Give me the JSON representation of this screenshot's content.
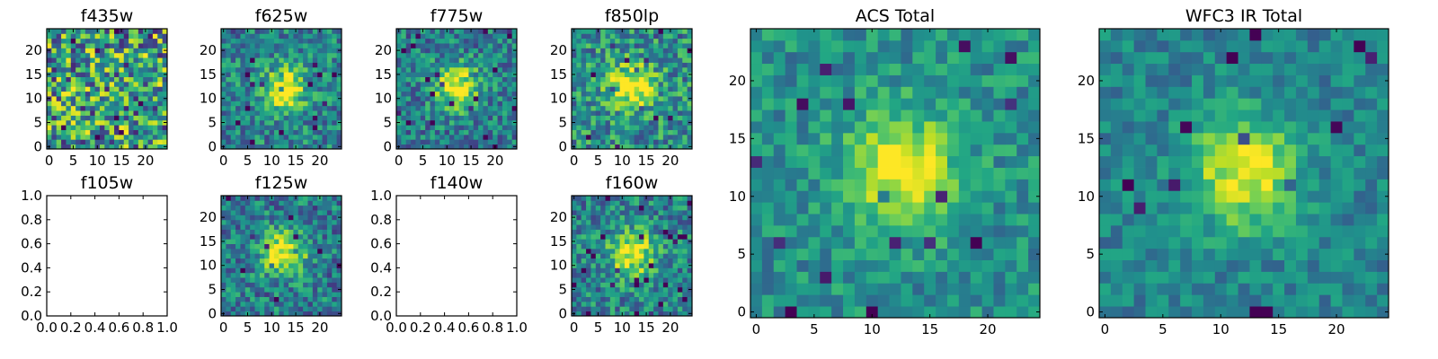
{
  "figure": {
    "colormap": "viridis",
    "grid": false
  },
  "chart_data": [
    {
      "type": "heatmap",
      "title": "f435w",
      "xticks": [
        "0",
        "5",
        "10",
        "15",
        "20"
      ],
      "yticks": [
        "0",
        "5",
        "10",
        "15",
        "20"
      ],
      "xlim": [
        -0.5,
        24.5
      ],
      "ylim": [
        -0.5,
        24.5
      ],
      "grid_size": 25,
      "blob": {
        "x": 12,
        "y": 12,
        "peak": 0.0
      },
      "noise": 0.9,
      "base": 0.55,
      "seed": 11
    },
    {
      "type": "heatmap",
      "title": "f625w",
      "xticks": [
        "0",
        "5",
        "10",
        "15",
        "20"
      ],
      "yticks": [
        "0",
        "5",
        "10",
        "15",
        "20"
      ],
      "xlim": [
        -0.5,
        24.5
      ],
      "ylim": [
        -0.5,
        24.5
      ],
      "grid_size": 25,
      "blob": {
        "x": 12.5,
        "y": 12,
        "peak": 0.95
      },
      "noise": 0.5,
      "base": 0.45,
      "seed": 23
    },
    {
      "type": "heatmap",
      "title": "f775w",
      "xticks": [
        "0",
        "5",
        "10",
        "15",
        "20"
      ],
      "yticks": [
        "0",
        "5",
        "10",
        "15",
        "20"
      ],
      "xlim": [
        -0.5,
        24.5
      ],
      "ylim": [
        -0.5,
        24.5
      ],
      "grid_size": 25,
      "blob": {
        "x": 12,
        "y": 12.5,
        "peak": 1.0
      },
      "noise": 0.5,
      "base": 0.42,
      "seed": 37
    },
    {
      "type": "heatmap",
      "title": "f850lp",
      "xticks": [
        "0",
        "5",
        "10",
        "15",
        "20"
      ],
      "yticks": [
        "0",
        "5",
        "10",
        "15",
        "20"
      ],
      "xlim": [
        -0.5,
        24.5
      ],
      "ylim": [
        -0.5,
        24.5
      ],
      "grid_size": 25,
      "blob": {
        "x": 12,
        "y": 12.5,
        "peak": 0.95
      },
      "noise": 0.55,
      "base": 0.5,
      "seed": 41
    },
    {
      "type": "empty",
      "title": "f105w",
      "xticks": [
        "0.0",
        "0.2",
        "0.4",
        "0.6",
        "0.8",
        "1.0"
      ],
      "yticks": [
        "0.0",
        "0.2",
        "0.4",
        "0.6",
        "0.8",
        "1.0"
      ],
      "xlim": [
        0,
        1
      ],
      "ylim": [
        0,
        1
      ]
    },
    {
      "type": "heatmap",
      "title": "f125w",
      "xticks": [
        "0",
        "5",
        "10",
        "15",
        "20"
      ],
      "yticks": [
        "0",
        "5",
        "10",
        "15",
        "20"
      ],
      "xlim": [
        -0.5,
        24.5
      ],
      "ylim": [
        -0.5,
        24.5
      ],
      "grid_size": 25,
      "blob": {
        "x": 12.5,
        "y": 12.5,
        "peak": 1.0
      },
      "noise": 0.5,
      "base": 0.42,
      "seed": 53
    },
    {
      "type": "empty",
      "title": "f140w",
      "xticks": [
        "0.0",
        "0.2",
        "0.4",
        "0.6",
        "0.8",
        "1.0"
      ],
      "yticks": [
        "0.0",
        "0.2",
        "0.4",
        "0.6",
        "0.8",
        "1.0"
      ],
      "xlim": [
        0,
        1
      ],
      "ylim": [
        0,
        1
      ]
    },
    {
      "type": "heatmap",
      "title": "f160w",
      "xticks": [
        "0",
        "5",
        "10",
        "15",
        "20"
      ],
      "yticks": [
        "0",
        "5",
        "10",
        "15",
        "20"
      ],
      "xlim": [
        -0.5,
        24.5
      ],
      "ylim": [
        -0.5,
        24.5
      ],
      "grid_size": 25,
      "blob": {
        "x": 12,
        "y": 12.5,
        "peak": 0.95
      },
      "noise": 0.5,
      "base": 0.45,
      "seed": 67
    },
    {
      "type": "heatmap",
      "title": "ACS Total",
      "xticks": [
        "0",
        "5",
        "10",
        "15",
        "20"
      ],
      "yticks": [
        "0",
        "5",
        "10",
        "15",
        "20"
      ],
      "xlim": [
        -0.5,
        24.5
      ],
      "ylim": [
        -0.5,
        24.5
      ],
      "grid_size": 25,
      "blob": {
        "x": 12.5,
        "y": 12.5,
        "peak": 0.9
      },
      "noise": 0.35,
      "base": 0.5,
      "seed": 79
    },
    {
      "type": "heatmap",
      "title": "WFC3 IR Total",
      "xticks": [
        "0",
        "5",
        "10",
        "15",
        "20"
      ],
      "yticks": [
        "0",
        "5",
        "10",
        "15",
        "20"
      ],
      "xlim": [
        -0.5,
        24.5
      ],
      "ylim": [
        -0.5,
        24.5
      ],
      "grid_size": 25,
      "blob": {
        "x": 12,
        "y": 12,
        "peak": 0.9
      },
      "noise": 0.3,
      "base": 0.45,
      "seed": 97
    }
  ]
}
